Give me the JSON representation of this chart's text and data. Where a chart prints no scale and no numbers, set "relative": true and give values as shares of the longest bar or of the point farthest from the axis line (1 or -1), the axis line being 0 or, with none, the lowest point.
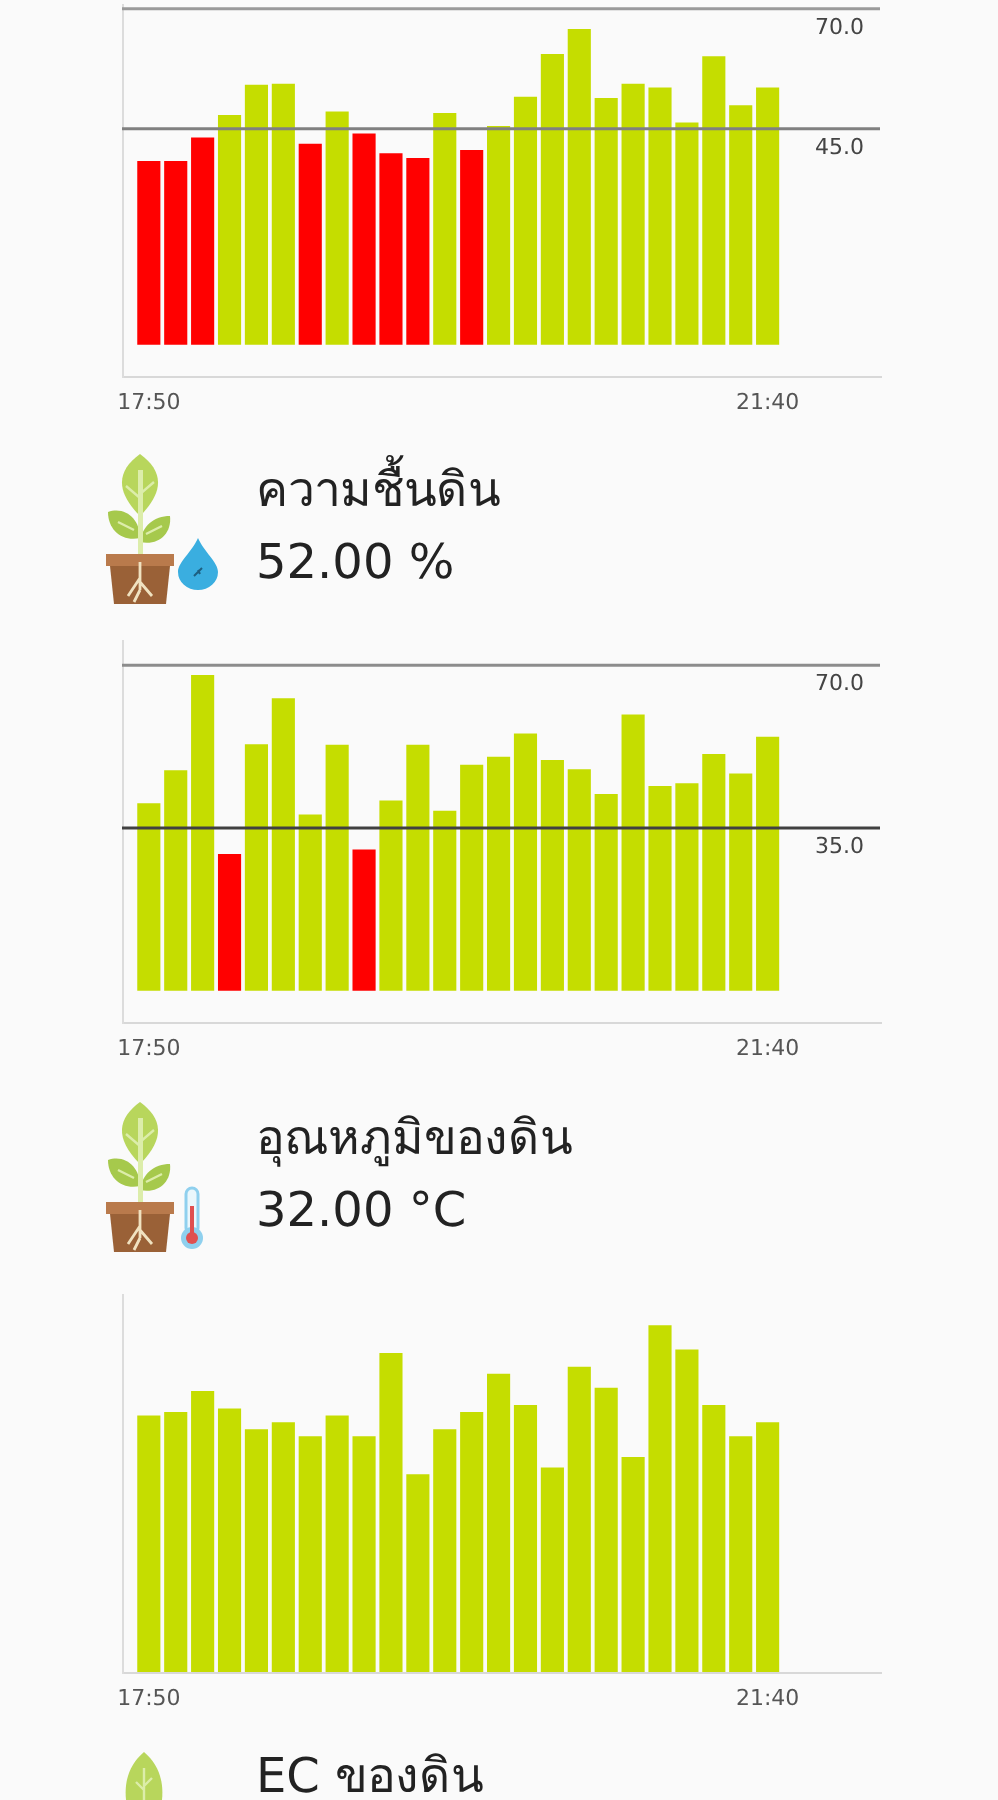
{
  "chart_data": [
    {
      "type": "bar",
      "categories": [
        "17:50",
        null,
        null,
        null,
        null,
        null,
        null,
        null,
        null,
        null,
        null,
        null,
        null,
        null,
        null,
        null,
        null,
        null,
        null,
        null,
        null,
        null,
        null,
        "21:40"
      ],
      "values": [
        38.3,
        38.3,
        43.2,
        47.9,
        54.2,
        54.4,
        41.9,
        48.6,
        44.0,
        39.9,
        38.9,
        48.3,
        40.6,
        45.6,
        51.7,
        60.6,
        65.8,
        51.4,
        54.4,
        53.6,
        46.3,
        60.1,
        49.9,
        53.6
      ],
      "colors": [
        "#ff0000",
        "#ff0000",
        "#ff0000",
        "#c5dd00",
        "#c5dd00",
        "#c5dd00",
        "#ff0000",
        "#c5dd00",
        "#ff0000",
        "#ff0000",
        "#ff0000",
        "#c5dd00",
        "#ff0000",
        "#c5dd00",
        "#c5dd00",
        "#c5dd00",
        "#c5dd00",
        "#c5dd00",
        "#c5dd00",
        "#c5dd00",
        "#c5dd00",
        "#c5dd00",
        "#c5dd00",
        "#c5dd00"
      ],
      "ylim": [
        -6.5,
        71
      ],
      "ref_lines": [
        {
          "axis": "y",
          "value": 70,
          "label": "70.0",
          "color": "#9a9a9a"
        },
        {
          "axis": "y",
          "value": 45,
          "label": "45.0",
          "color": "#808080"
        }
      ]
    },
    {
      "type": "bar",
      "title": "ความชื้นดิน",
      "subtitle": "52.00 %",
      "categories": [
        "17:50",
        null,
        null,
        null,
        null,
        null,
        null,
        null,
        null,
        null,
        null,
        null,
        null,
        null,
        null,
        null,
        null,
        null,
        null,
        null,
        null,
        null,
        null,
        "21:40"
      ],
      "values": [
        40.3,
        47.4,
        67.9,
        29.4,
        53.0,
        62.9,
        37.9,
        52.9,
        30.4,
        40.9,
        52.9,
        38.7,
        48.6,
        50.3,
        55.3,
        49.6,
        47.6,
        42.3,
        59.4,
        44.0,
        44.6,
        50.9,
        46.7,
        54.6
      ],
      "colors": [
        "#c5dd00",
        "#c5dd00",
        "#c5dd00",
        "#ff0000",
        "#c5dd00",
        "#c5dd00",
        "#c5dd00",
        "#c5dd00",
        "#ff0000",
        "#c5dd00",
        "#c5dd00",
        "#c5dd00",
        "#c5dd00",
        "#c5dd00",
        "#c5dd00",
        "#c5dd00",
        "#c5dd00",
        "#c5dd00",
        "#c5dd00",
        "#c5dd00",
        "#c5dd00",
        "#c5dd00",
        "#c5dd00",
        "#c5dd00"
      ],
      "ylim": [
        -6.7,
        75.4
      ],
      "ref_lines": [
        {
          "axis": "y",
          "value": 70,
          "label": "70.0",
          "color": "#8c8c8c"
        },
        {
          "axis": "y",
          "value": 35,
          "label": "35.0",
          "color": "#404040"
        }
      ]
    },
    {
      "type": "bar",
      "title": "อุณหภูมิของดิน",
      "subtitle": "32.00 °C",
      "relative": true,
      "categories": [
        "17:50",
        null,
        null,
        null,
        null,
        null,
        null,
        null,
        null,
        null,
        null,
        null,
        null,
        null,
        null,
        null,
        null,
        null,
        null,
        null,
        null,
        null,
        null,
        "21:40"
      ],
      "values": [
        0.74,
        0.75,
        0.81,
        0.76,
        0.7,
        0.72,
        0.68,
        0.74,
        0.68,
        0.92,
        0.57,
        0.7,
        0.75,
        0.86,
        0.77,
        0.59,
        0.88,
        0.82,
        0.62,
        1,
        0.93,
        0.77,
        0.68,
        0.72
      ],
      "color": "#c5dd00"
    },
    {
      "type": "other",
      "title": "EC ของดิน"
    }
  ]
}
